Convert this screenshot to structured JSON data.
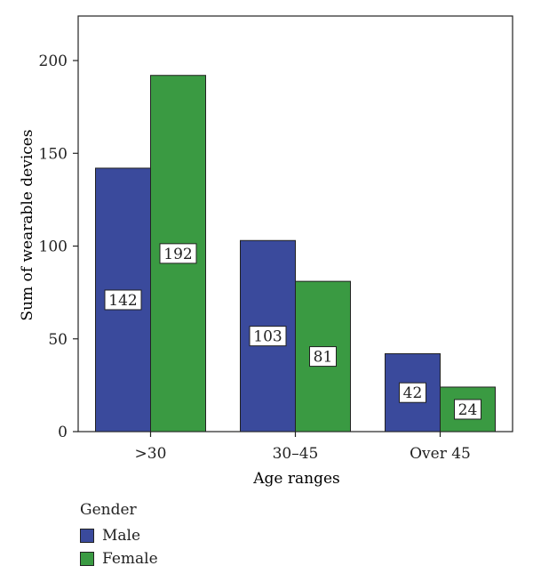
{
  "chart_data": {
    "type": "bar",
    "title": "",
    "xlabel": "Age ranges",
    "ylabel": "Sum of wearable devices",
    "categories": [
      ">30",
      "30–45",
      "Over 45"
    ],
    "series": [
      {
        "name": "Male",
        "color": "#3a4a9c",
        "values": [
          142,
          103,
          42
        ]
      },
      {
        "name": "Female",
        "color": "#3a9a42",
        "values": [
          192,
          81,
          24
        ]
      }
    ],
    "ylim": [
      0,
      224
    ],
    "yticks": [
      0,
      50,
      100,
      150,
      200
    ],
    "grid": false,
    "legend": {
      "title": "Gender",
      "placement": "bottom-left"
    }
  }
}
